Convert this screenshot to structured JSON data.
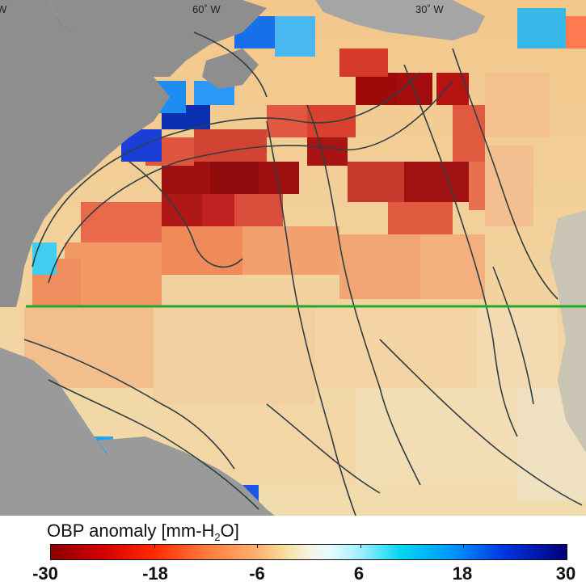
{
  "map": {
    "lon_labels": {
      "w0": "W",
      "lon60": "60˚ W",
      "lon30": "30˚ W"
    },
    "colors": {
      "land": "#8e8e8e",
      "land_light": "#b2b2b2",
      "contour": "#2f3f44",
      "section_line": "#22a82a"
    }
  },
  "colorbar": {
    "title_main": "OBP anomaly [mm-H",
    "title_sub": "2",
    "title_end": "O]",
    "min": -30,
    "max": 30,
    "tick_labels": [
      "-30",
      "-18",
      "-6",
      "6",
      "18",
      "30"
    ]
  }
}
